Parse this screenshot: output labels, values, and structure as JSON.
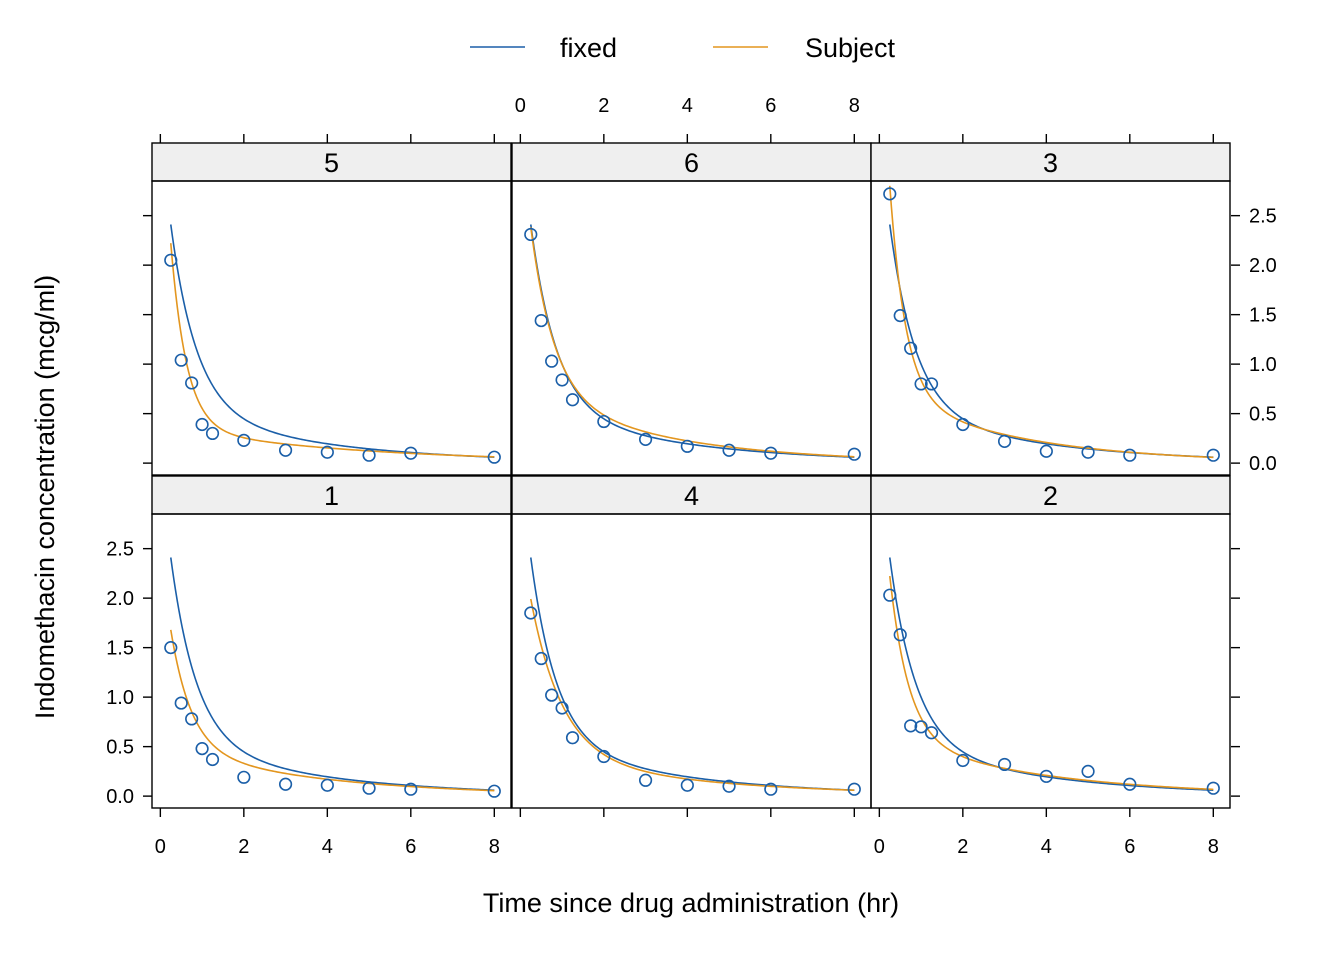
{
  "colors": {
    "fixed": "#1b5fa8",
    "subject": "#e3961f",
    "strip": "#efefef",
    "frame": "#000000"
  },
  "legend": {
    "position": "top-center",
    "items": [
      {
        "key": "fixed",
        "label": "fixed"
      },
      {
        "key": "subject",
        "label": "Subject"
      }
    ]
  },
  "chart_data": {
    "type": "scatter",
    "layout": "lattice 3x2",
    "xlabel": "Time since drug administration (hr)",
    "ylabel": "Indomethacin concentration (mcg/ml)",
    "xlim": [
      -0.2,
      8.4
    ],
    "ylim": [
      -0.12,
      2.85
    ],
    "xticks": [
      0,
      2,
      4,
      6,
      8
    ],
    "xtick_labels": [
      "0",
      "2",
      "4",
      "6",
      "8"
    ],
    "yticks": [
      0.0,
      0.5,
      1.0,
      1.5,
      2.0,
      2.5
    ],
    "ytick_labels": [
      "0.0",
      "0.5",
      "1.0",
      "1.5",
      "2.0",
      "2.5"
    ],
    "x": [
      0.25,
      0.5,
      0.75,
      1,
      1.25,
      2,
      3,
      4,
      5,
      6,
      8
    ],
    "fixed_model": {
      "A": 2.77,
      "alpha": 1.63,
      "B": 0.61,
      "beta": 0.29
    },
    "panels": [
      {
        "label": "5",
        "observed": [
          2.05,
          1.04,
          0.81,
          0.39,
          0.3,
          0.23,
          0.13,
          0.11,
          0.08,
          0.1,
          0.06
        ],
        "subject_model": {
          "A": 3.63,
          "alpha": 2.65,
          "B": 0.37,
          "beta": 0.22
        }
      },
      {
        "label": "6",
        "observed": [
          2.31,
          1.44,
          1.03,
          0.84,
          0.64,
          0.42,
          0.24,
          0.17,
          0.13,
          0.1,
          0.09
        ],
        "subject_model": {
          "A": 2.62,
          "alpha": 1.8,
          "B": 0.77,
          "beta": 0.31
        }
      },
      {
        "label": "3",
        "observed": [
          2.72,
          1.49,
          1.16,
          0.8,
          0.8,
          0.39,
          0.22,
          0.12,
          0.11,
          0.08,
          0.08
        ],
        "subject_model": {
          "A": 4.07,
          "alpha": 2.63,
          "B": 0.75,
          "beta": 0.32
        }
      },
      {
        "label": "1",
        "observed": [
          1.5,
          0.94,
          0.78,
          0.48,
          0.37,
          0.19,
          0.12,
          0.11,
          0.08,
          0.07,
          0.05
        ],
        "subject_model": {
          "A": 1.99,
          "alpha": 2.04,
          "B": 0.52,
          "beta": 0.28
        }
      },
      {
        "label": "4",
        "observed": [
          1.85,
          1.39,
          1.02,
          0.89,
          0.59,
          0.4,
          0.16,
          0.11,
          0.1,
          0.07,
          0.07
        ],
        "subject_model": {
          "A": 2.2,
          "alpha": 1.33,
          "B": 0.44,
          "beta": 0.25
        }
      },
      {
        "label": "2",
        "observed": [
          2.03,
          1.63,
          0.71,
          0.7,
          0.64,
          0.36,
          0.32,
          0.2,
          0.25,
          0.12,
          0.08
        ],
        "subject_model": {
          "A": 2.84,
          "alpha": 2.23,
          "B": 0.64,
          "beta": 0.28
        }
      }
    ]
  }
}
